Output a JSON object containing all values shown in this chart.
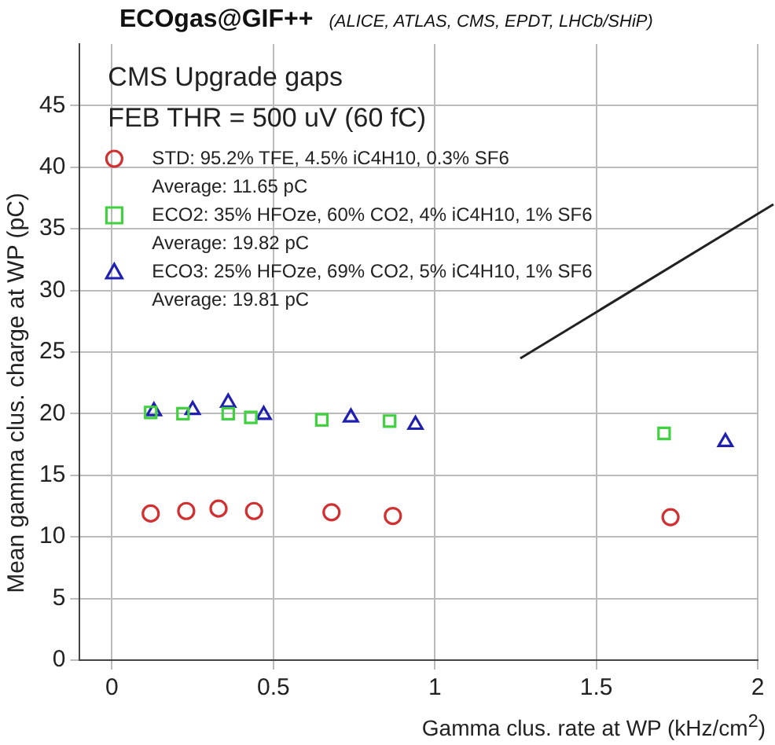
{
  "chart_data": {
    "type": "scatter",
    "title": "ECOgas@GIF++",
    "subtitle": "(ALICE, ATLAS, CMS, EPDT, LHCb/SHiP)",
    "xlabel": "Gamma clus. rate at WP (kHz/cm$^{2}$)",
    "ylabel": "Mean gamma clus. charge at WP (pC)",
    "annotations": [
      "CMS Upgrade gaps",
      "FEB THR = 500 uV (60 fC)",
      "Average: 11.65 pC",
      "Average: 19.82 pC",
      "Average: 19.81 pC"
    ],
    "series": [
      {
        "name": "STD: 95.2% TFE, 4.5% iC4H10, 0.3% SF6",
        "color": "#d03030",
        "marker": "circle",
        "x": [
          0.12,
          0.23,
          0.33,
          0.44,
          0.68,
          0.87,
          1.73
        ],
        "values": [
          11.9,
          12.1,
          12.3,
          12.1,
          12.0,
          11.7,
          11.6
        ]
      },
      {
        "name": "ECO2: 35% HFOze, 60% CO2, 4% iC4H10, 1% SF6",
        "color": "#40d040",
        "marker": "square",
        "x": [
          0.12,
          0.22,
          0.36,
          0.43,
          0.65,
          0.86,
          1.71
        ],
        "values": [
          20.1,
          20.0,
          20.0,
          19.7,
          19.5,
          19.4,
          18.4
        ]
      },
      {
        "name": "ECO3: 25% HFOze, 69% CO2, 5% iC4H10, 1% SF6",
        "color": "#2020b0",
        "marker": "triangle",
        "x": [
          0.13,
          0.25,
          0.36,
          0.47,
          0.74,
          0.94,
          1.9
        ],
        "values": [
          20.2,
          20.3,
          20.9,
          19.9,
          19.7,
          19.1,
          17.7
        ]
      }
    ],
    "xlim": [
      -0.1,
      2.0
    ],
    "xticks": [
      0,
      0.5,
      1,
      1.5,
      2
    ],
    "ylim": [
      0,
      50
    ],
    "yticks": [
      0,
      5,
      10,
      15,
      20,
      25,
      30,
      35,
      40,
      45
    ],
    "grid": true,
    "legend": "top left"
  }
}
